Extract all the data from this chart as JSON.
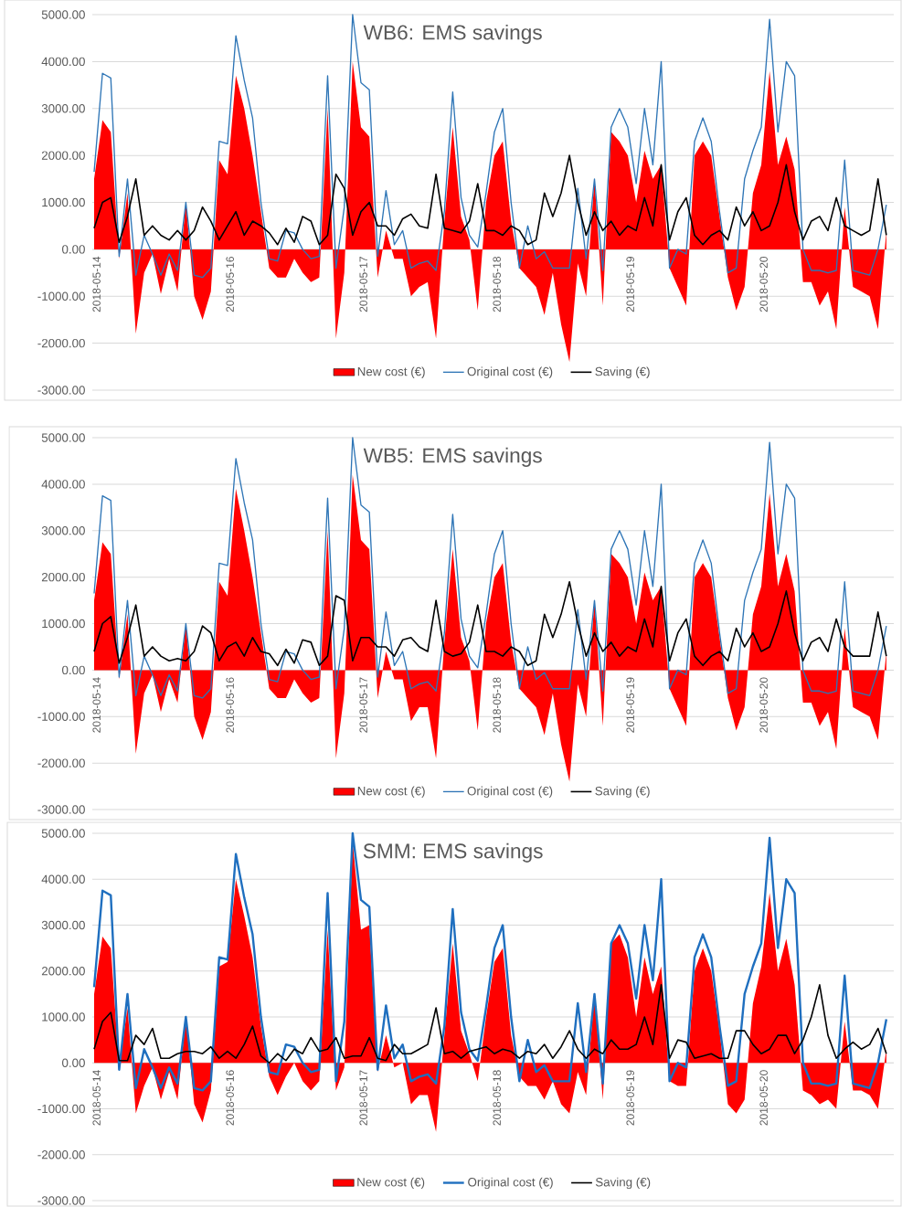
{
  "chart_data": [
    {
      "type": "line",
      "title": "WB6: EMS savings",
      "categories": [
        "2018-05-14",
        null,
        null,
        null,
        null,
        null,
        null,
        null,
        null,
        null,
        null,
        null,
        null,
        null,
        null,
        null,
        "2018-05-16",
        null,
        null,
        null,
        null,
        null,
        null,
        null,
        null,
        null,
        null,
        null,
        null,
        null,
        null,
        null,
        "2018-05-17",
        null,
        null,
        null,
        null,
        null,
        null,
        null,
        null,
        null,
        null,
        null,
        null,
        null,
        null,
        null,
        "2018-05-18",
        null,
        null,
        null,
        null,
        null,
        null,
        null,
        null,
        null,
        null,
        null,
        null,
        null,
        null,
        null,
        "2018-05-19",
        null,
        null,
        null,
        null,
        null,
        null,
        null,
        null,
        null,
        null,
        null,
        null,
        null,
        null,
        null,
        "2018-05-20",
        null,
        null,
        null,
        null,
        null,
        null,
        null,
        null,
        null,
        null,
        null,
        null,
        null,
        null,
        null
      ],
      "ylim": [
        -3000,
        5000
      ],
      "yticks": [
        {
          "value": -3000,
          "label": "-3000.00"
        },
        {
          "value": -2000,
          "label": "-2000.00"
        },
        {
          "value": -1000,
          "label": "-1000.00"
        },
        {
          "value": 0,
          "label": "0.00"
        },
        {
          "value": 1000,
          "label": "1000.00"
        },
        {
          "value": 2000,
          "label": "2000.00"
        },
        {
          "value": 3000,
          "label": "3000.00"
        },
        {
          "value": 4000,
          "label": "4000.00"
        },
        {
          "value": 5000,
          "label": "5000.00"
        }
      ],
      "grid": "y",
      "legend": "bottom",
      "series": [
        {
          "name": "New cost (€)",
          "type": "area",
          "color": "#ff0000",
          "values": [
            1500,
            2750,
            2500,
            -200,
            1200,
            -1800,
            -500,
            -100,
            -950,
            -200,
            -900,
            1000,
            -1000,
            -1500,
            -900,
            1900,
            1600,
            3700,
            3000,
            2000,
            800,
            -400,
            -600,
            -600,
            -200,
            -500,
            -700,
            -600,
            3000,
            -1900,
            -500,
            4000,
            2600,
            2400,
            -600,
            400,
            -200,
            -200,
            -1000,
            -800,
            -700,
            -1900,
            600,
            2600,
            700,
            200,
            -1300,
            1000,
            2000,
            2300,
            600,
            -400,
            -600,
            -800,
            -1400,
            -500,
            -1600,
            -2400,
            -300,
            -1000,
            1500,
            -1200,
            2500,
            2300,
            2000,
            1000,
            2100,
            1500,
            1800,
            -400,
            -800,
            -1200,
            2000,
            2300,
            2000,
            700,
            -600,
            -1300,
            -800,
            1200,
            1800,
            3800,
            1800,
            2400,
            1700,
            -700,
            -700,
            -1200,
            -900,
            -1700,
            900,
            -800,
            -900,
            -1000,
            -1700,
            400
          ]
        },
        {
          "name": "Original cost (€)",
          "type": "line",
          "color": "#2e75b6",
          "values": [
            1650,
            3750,
            3650,
            -150,
            1500,
            -550,
            300,
            -100,
            -550,
            -100,
            -450,
            1000,
            -550,
            -600,
            -400,
            2300,
            2250,
            4550,
            3600,
            2800,
            1000,
            -200,
            -250,
            400,
            350,
            0,
            -200,
            -150,
            3700,
            -400,
            900,
            5000,
            3550,
            3400,
            -150,
            1250,
            100,
            400,
            -400,
            -300,
            -250,
            -450,
            800,
            3350,
            1100,
            300,
            50,
            1200,
            2500,
            3000,
            1000,
            -400,
            500,
            -200,
            -50,
            -400,
            -400,
            -400,
            1300,
            -200,
            1500,
            -450,
            2600,
            3000,
            2600,
            1400,
            3000,
            1800,
            4000,
            -400,
            0,
            -100,
            2300,
            2800,
            2300,
            800,
            -500,
            -400,
            1500,
            2100,
            2600,
            4900,
            2500,
            4000,
            3700,
            0,
            -450,
            -450,
            -500,
            -450,
            1900,
            -450,
            -500,
            -550,
            0,
            950
          ]
        },
        {
          "name": "Saving (€)",
          "type": "line",
          "color": "#000000",
          "values": [
            450,
            1000,
            1100,
            150,
            700,
            1500,
            300,
            500,
            300,
            200,
            400,
            200,
            400,
            900,
            600,
            200,
            500,
            800,
            300,
            600,
            500,
            350,
            100,
            450,
            150,
            700,
            600,
            100,
            300,
            1600,
            1300,
            300,
            800,
            1000,
            500,
            500,
            300,
            650,
            750,
            500,
            450,
            1600,
            450,
            400,
            350,
            600,
            1400,
            400,
            400,
            300,
            500,
            400,
            100,
            200,
            1200,
            700,
            1200,
            2000,
            1000,
            300,
            800,
            400,
            600,
            300,
            500,
            400,
            1100,
            500,
            1800,
            200,
            800,
            1100,
            300,
            100,
            300,
            400,
            200,
            900,
            500,
            800,
            400,
            500,
            1000,
            1800,
            800,
            200,
            600,
            700,
            400,
            1100,
            500,
            400,
            300,
            400,
            1500,
            300
          ]
        }
      ]
    },
    {
      "type": "line",
      "title": "WB5: EMS savings",
      "categories": [
        "2018-05-14",
        null,
        null,
        null,
        null,
        null,
        null,
        null,
        null,
        null,
        null,
        null,
        null,
        null,
        null,
        null,
        "2018-05-16",
        null,
        null,
        null,
        null,
        null,
        null,
        null,
        null,
        null,
        null,
        null,
        null,
        null,
        null,
        null,
        "2018-05-17",
        null,
        null,
        null,
        null,
        null,
        null,
        null,
        null,
        null,
        null,
        null,
        null,
        null,
        null,
        null,
        "2018-05-18",
        null,
        null,
        null,
        null,
        null,
        null,
        null,
        null,
        null,
        null,
        null,
        null,
        null,
        null,
        null,
        "2018-05-19",
        null,
        null,
        null,
        null,
        null,
        null,
        null,
        null,
        null,
        null,
        null,
        null,
        null,
        null,
        null,
        "2018-05-20",
        null,
        null,
        null,
        null,
        null,
        null,
        null,
        null,
        null,
        null,
        null,
        null,
        null,
        null,
        null
      ],
      "ylim": [
        -3000,
        5000
      ],
      "yticks": [
        {
          "value": -3000,
          "label": "-3000.00"
        },
        {
          "value": -2000,
          "label": "-2000.00"
        },
        {
          "value": -1000,
          "label": "-1000.00"
        },
        {
          "value": 0,
          "label": "0.00"
        },
        {
          "value": 1000,
          "label": "1000.00"
        },
        {
          "value": 2000,
          "label": "2000.00"
        },
        {
          "value": 3000,
          "label": "3000.00"
        },
        {
          "value": 4000,
          "label": "4000.00"
        },
        {
          "value": 5000,
          "label": "5000.00"
        }
      ],
      "grid": "y",
      "legend": "bottom",
      "series": [
        {
          "name": "New cost (€)",
          "type": "area",
          "color": "#ff0000",
          "values": [
            1500,
            2750,
            2500,
            -200,
            1200,
            -1800,
            -500,
            -100,
            -900,
            -200,
            -700,
            1000,
            -1000,
            -1500,
            -900,
            1900,
            1600,
            3900,
            3000,
            2000,
            800,
            -400,
            -600,
            -600,
            -200,
            -500,
            -700,
            -600,
            3000,
            -1900,
            -500,
            4200,
            2800,
            2600,
            -600,
            400,
            -200,
            -200,
            -1100,
            -800,
            -800,
            -1900,
            600,
            2600,
            700,
            200,
            -1300,
            1000,
            2000,
            2300,
            600,
            -400,
            -600,
            -800,
            -1400,
            -500,
            -1600,
            -2400,
            -300,
            -1000,
            1500,
            -1200,
            2500,
            2300,
            2000,
            1000,
            2100,
            1500,
            1800,
            -400,
            -800,
            -1200,
            2000,
            2300,
            2000,
            700,
            -600,
            -1300,
            -800,
            1200,
            1800,
            3800,
            1800,
            2500,
            1700,
            -700,
            -700,
            -1200,
            -900,
            -1700,
            900,
            -800,
            -900,
            -1000,
            -1500,
            400
          ]
        },
        {
          "name": "Original cost (€)",
          "type": "line",
          "color": "#2e75b6",
          "values": [
            1650,
            3750,
            3650,
            -150,
            1500,
            -550,
            300,
            -100,
            -550,
            -100,
            -450,
            1000,
            -550,
            -600,
            -400,
            2300,
            2250,
            4550,
            3600,
            2800,
            1000,
            -200,
            -250,
            400,
            350,
            0,
            -200,
            -150,
            3700,
            -400,
            900,
            5000,
            3550,
            3400,
            -150,
            1250,
            100,
            400,
            -400,
            -300,
            -250,
            -450,
            800,
            3350,
            1100,
            300,
            50,
            1200,
            2500,
            3000,
            1000,
            -400,
            500,
            -200,
            -50,
            -400,
            -400,
            -400,
            1300,
            -200,
            1500,
            -450,
            2600,
            3000,
            2600,
            1400,
            3000,
            1800,
            4000,
            -400,
            0,
            -100,
            2300,
            2800,
            2300,
            800,
            -500,
            -400,
            1500,
            2100,
            2600,
            4900,
            2500,
            4000,
            3700,
            0,
            -450,
            -450,
            -500,
            -450,
            1900,
            -450,
            -500,
            -550,
            0,
            950
          ]
        },
        {
          "name": "Saving (€)",
          "type": "line",
          "color": "#000000",
          "values": [
            400,
            1000,
            1150,
            150,
            700,
            1400,
            300,
            500,
            300,
            200,
            250,
            200,
            400,
            950,
            800,
            200,
            500,
            600,
            300,
            700,
            400,
            350,
            100,
            450,
            150,
            650,
            600,
            100,
            300,
            1600,
            1500,
            200,
            700,
            700,
            500,
            500,
            300,
            650,
            700,
            500,
            400,
            1500,
            400,
            300,
            350,
            600,
            1400,
            400,
            400,
            300,
            500,
            400,
            100,
            200,
            1200,
            700,
            1200,
            1900,
            1000,
            300,
            800,
            400,
            600,
            300,
            500,
            400,
            1100,
            500,
            1800,
            200,
            800,
            1100,
            300,
            100,
            300,
            400,
            200,
            900,
            500,
            800,
            400,
            500,
            1000,
            1700,
            800,
            200,
            600,
            700,
            400,
            1100,
            500,
            300,
            300,
            300,
            1250,
            300
          ]
        }
      ]
    },
    {
      "type": "line",
      "title": "SMM: EMS savings",
      "categories": [
        "2018-05-14",
        null,
        null,
        null,
        null,
        null,
        null,
        null,
        null,
        null,
        null,
        null,
        null,
        null,
        null,
        null,
        "2018-05-16",
        null,
        null,
        null,
        null,
        null,
        null,
        null,
        null,
        null,
        null,
        null,
        null,
        null,
        null,
        null,
        "2018-05-17",
        null,
        null,
        null,
        null,
        null,
        null,
        null,
        null,
        null,
        null,
        null,
        null,
        null,
        null,
        null,
        "2018-05-18",
        null,
        null,
        null,
        null,
        null,
        null,
        null,
        null,
        null,
        null,
        null,
        null,
        null,
        null,
        null,
        "2018-05-19",
        null,
        null,
        null,
        null,
        null,
        null,
        null,
        null,
        null,
        null,
        null,
        null,
        null,
        null,
        null,
        "2018-05-20",
        null,
        null,
        null,
        null,
        null,
        null,
        null,
        null,
        null,
        null,
        null,
        null,
        null,
        null,
        null
      ],
      "ylim": [
        -3000,
        5000
      ],
      "yticks": [
        {
          "value": -3000,
          "label": "-3000.00"
        },
        {
          "value": -2000,
          "label": "-2000.00"
        },
        {
          "value": -1000,
          "label": "-1000.00"
        },
        {
          "value": 0,
          "label": "0.00"
        },
        {
          "value": 1000,
          "label": "1000.00"
        },
        {
          "value": 2000,
          "label": "2000.00"
        },
        {
          "value": 3000,
          "label": "3000.00"
        },
        {
          "value": 4000,
          "label": "4000.00"
        },
        {
          "value": 5000,
          "label": "5000.00"
        }
      ],
      "grid": "y",
      "legend": "bottom",
      "series": [
        {
          "name": "New cost (€)",
          "type": "area",
          "color": "#ff0000",
          "values": [
            1500,
            2750,
            2500,
            -100,
            1200,
            -1100,
            -500,
            -100,
            -800,
            -200,
            -800,
            1000,
            -900,
            -1300,
            -600,
            2100,
            2200,
            4000,
            3200,
            2300,
            800,
            -300,
            -700,
            -300,
            0,
            -400,
            -600,
            -400,
            2900,
            -600,
            -100,
            4800,
            2900,
            3000,
            -200,
            600,
            -100,
            0,
            -900,
            -700,
            -700,
            -1500,
            600,
            2600,
            700,
            200,
            -400,
            1000,
            2200,
            2500,
            600,
            -300,
            -500,
            -500,
            -800,
            -400,
            -900,
            -1100,
            -200,
            -700,
            1500,
            -800,
            2600,
            2800,
            2300,
            1000,
            2300,
            1500,
            2100,
            -400,
            -500,
            -500,
            2000,
            2500,
            2000,
            700,
            -900,
            -1100,
            -800,
            1300,
            2100,
            3700,
            2000,
            2700,
            1700,
            -600,
            -700,
            -900,
            -800,
            -1000,
            900,
            -600,
            -600,
            -700,
            -1000,
            300
          ]
        },
        {
          "name": "Original cost (€)",
          "type": "line",
          "color": "#1f6fbf",
          "values": [
            1650,
            3750,
            3650,
            -150,
            1500,
            -550,
            300,
            -100,
            -550,
            -100,
            -450,
            1000,
            -550,
            -600,
            -400,
            2300,
            2250,
            4550,
            3600,
            2800,
            1000,
            -200,
            -250,
            400,
            350,
            0,
            -200,
            -150,
            3700,
            -400,
            900,
            5000,
            3550,
            3400,
            -150,
            1250,
            100,
            400,
            -400,
            -300,
            -250,
            -450,
            800,
            3350,
            1100,
            300,
            50,
            1200,
            2500,
            3000,
            1000,
            -400,
            500,
            -200,
            -50,
            -400,
            -400,
            -400,
            1300,
            -200,
            1500,
            -450,
            2600,
            3000,
            2600,
            1400,
            3000,
            1800,
            4000,
            -400,
            0,
            -100,
            2300,
            2800,
            2300,
            800,
            -500,
            -400,
            1500,
            2100,
            2600,
            4900,
            2500,
            4000,
            3700,
            0,
            -450,
            -450,
            -500,
            -450,
            1900,
            -450,
            -500,
            -550,
            0,
            950
          ]
        },
        {
          "name": "Saving (€)",
          "type": "line",
          "color": "#000000",
          "values": [
            300,
            900,
            1100,
            50,
            50,
            600,
            400,
            750,
            100,
            100,
            200,
            250,
            250,
            200,
            350,
            100,
            250,
            100,
            400,
            800,
            150,
            0,
            200,
            50,
            300,
            200,
            550,
            250,
            300,
            550,
            100,
            150,
            150,
            550,
            100,
            50,
            400,
            200,
            200,
            300,
            400,
            1200,
            200,
            250,
            100,
            250,
            300,
            350,
            200,
            300,
            250,
            100,
            250,
            200,
            400,
            100,
            350,
            700,
            300,
            100,
            300,
            200,
            500,
            300,
            300,
            400,
            1000,
            400,
            1700,
            100,
            500,
            450,
            100,
            150,
            200,
            100,
            100,
            700,
            700,
            400,
            200,
            300,
            600,
            600,
            200,
            500,
            1000,
            1700,
            600,
            100,
            300,
            450,
            300,
            400,
            750,
            200
          ]
        }
      ]
    }
  ]
}
